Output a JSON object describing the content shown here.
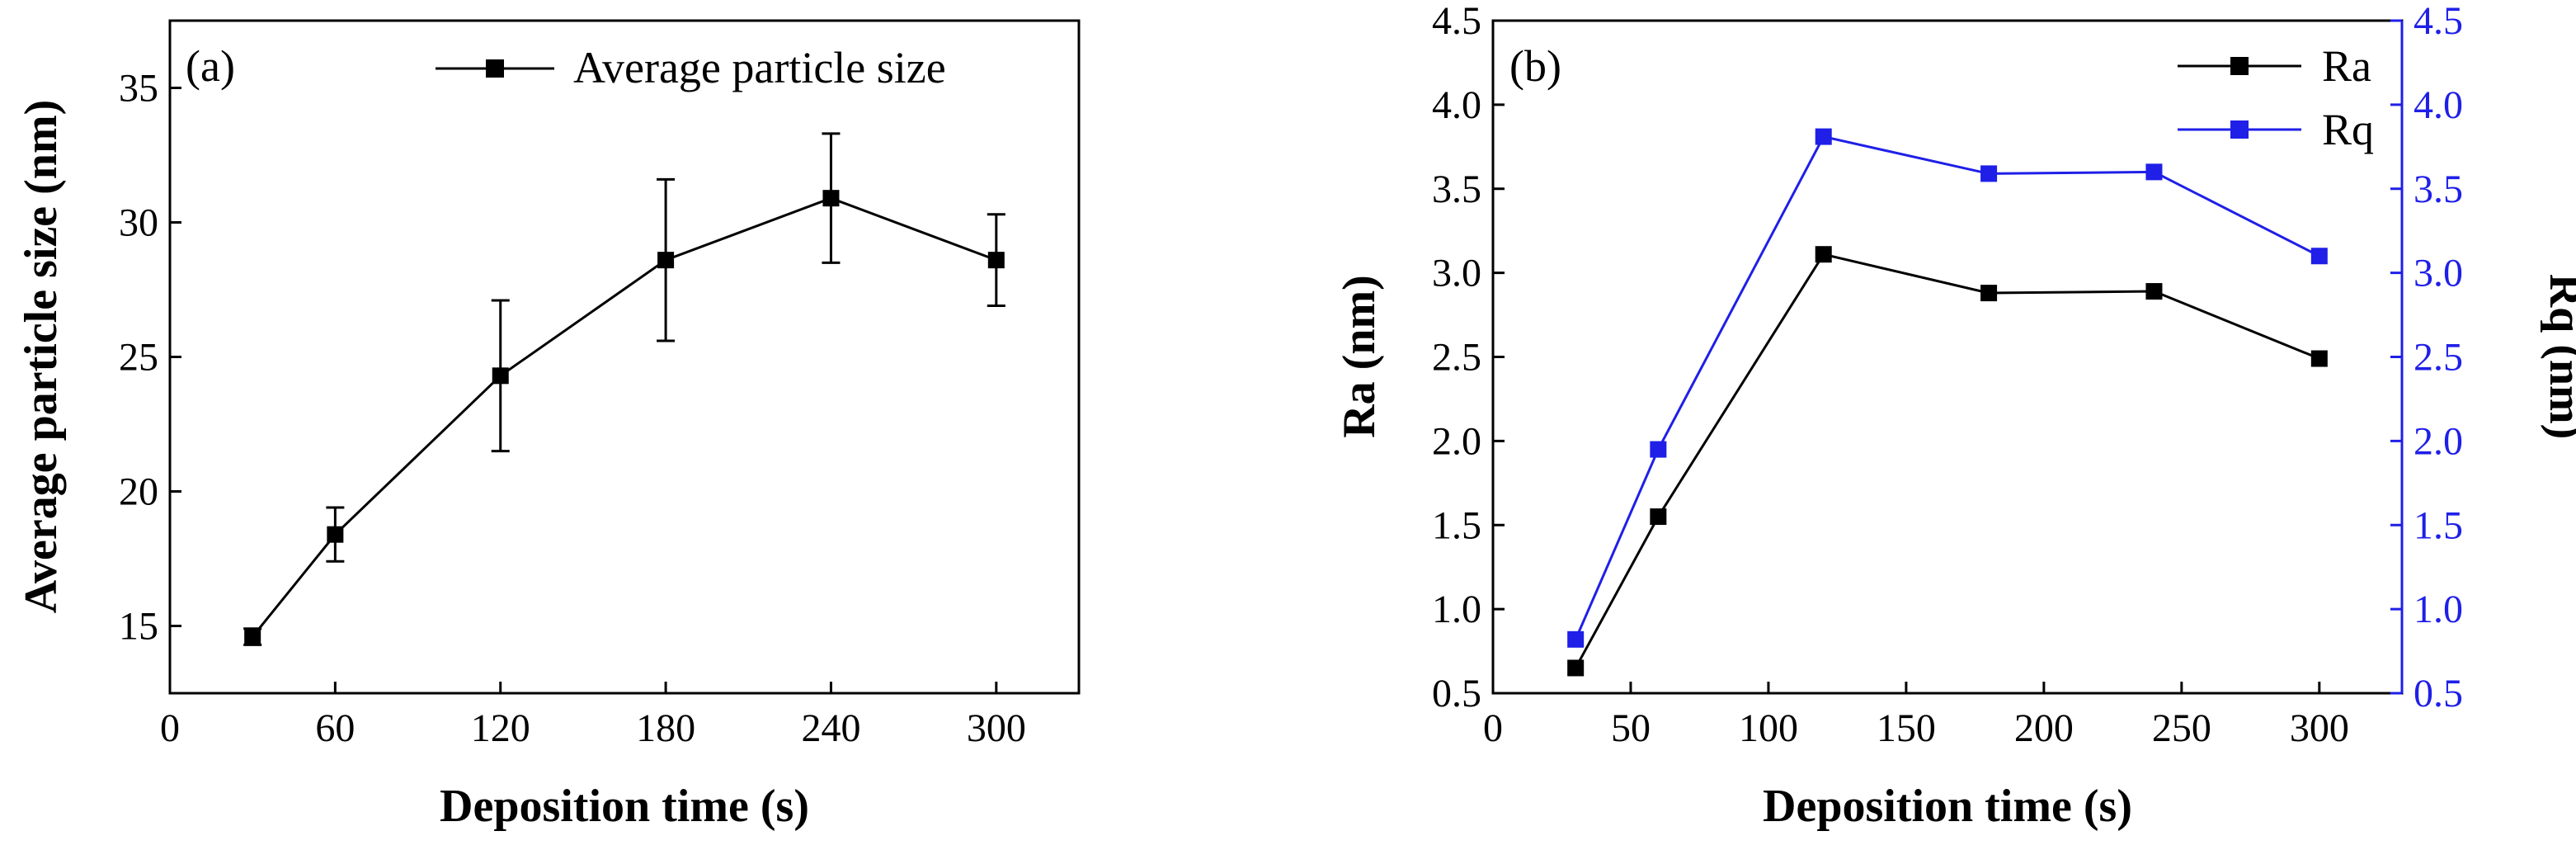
{
  "chart_data": [
    {
      "type": "line",
      "panel_label": "(a)",
      "xlabel": "Deposition time (s)",
      "ylabel": "Average particle size (nm)",
      "xlim": [
        0,
        330
      ],
      "ylim": [
        12.5,
        37.5
      ],
      "xticks": [
        0,
        60,
        120,
        180,
        240,
        300
      ],
      "yticks": [
        15,
        20,
        25,
        30,
        35
      ],
      "xtick_labels": [
        "0",
        "60",
        "120",
        "180",
        "240",
        "300"
      ],
      "ytick_labels": [
        "15",
        "20",
        "25",
        "30",
        "35"
      ],
      "legend_position": "top-right",
      "series": [
        {
          "name": "Average particle size",
          "color": "#000000",
          "marker": "square",
          "x": [
            30,
            60,
            120,
            180,
            240,
            300
          ],
          "values": [
            14.6,
            18.4,
            24.3,
            28.6,
            30.9,
            28.6
          ],
          "error": [
            0.3,
            1.0,
            2.8,
            3.0,
            2.4,
            1.7
          ]
        }
      ]
    },
    {
      "type": "line",
      "panel_label": "(b)",
      "xlabel": "Deposition time (s)",
      "ylabel": "Ra (nm)",
      "ylabel_right": "Rq (nm)",
      "xlim": [
        0,
        330
      ],
      "ylim": [
        0.5,
        4.5
      ],
      "ylim_right": [
        0.5,
        4.5
      ],
      "xticks": [
        0,
        50,
        100,
        150,
        200,
        250,
        300
      ],
      "yticks": [
        0.5,
        1.0,
        1.5,
        2.0,
        2.5,
        3.0,
        3.5,
        4.0,
        4.5
      ],
      "xtick_labels": [
        "0",
        "50",
        "100",
        "150",
        "200",
        "250",
        "300"
      ],
      "ytick_labels": [
        "0.5",
        "1.0",
        "1.5",
        "2.0",
        "2.5",
        "3.0",
        "3.5",
        "4.0",
        "4.5"
      ],
      "legend_position": "top-right",
      "series": [
        {
          "name": "Ra",
          "color": "#000000",
          "marker": "square",
          "axis": "left",
          "x": [
            30,
            60,
            120,
            180,
            240,
            300
          ],
          "values": [
            0.65,
            1.55,
            3.11,
            2.88,
            2.89,
            2.49
          ]
        },
        {
          "name": "Rq",
          "color": "#1f1fe8",
          "marker": "square",
          "axis": "right",
          "x": [
            30,
            60,
            120,
            180,
            240,
            300
          ],
          "values": [
            0.82,
            1.95,
            3.81,
            3.59,
            3.6,
            3.1
          ]
        }
      ]
    }
  ]
}
